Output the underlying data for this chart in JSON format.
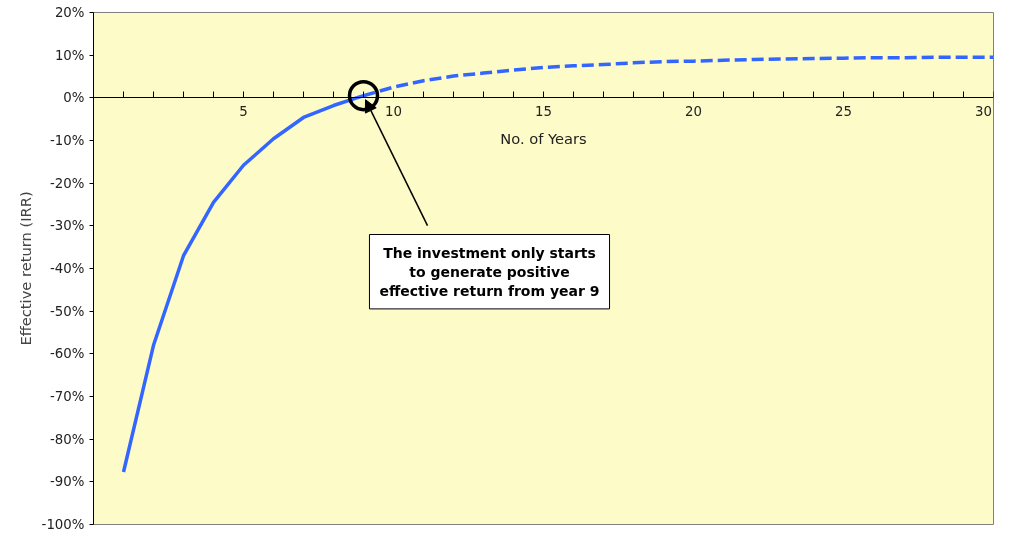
{
  "chart_data": {
    "type": "line",
    "xlabel": "No. of Years",
    "ylabel": "Effective return (IRR)",
    "xlim": [
      0,
      30
    ],
    "ylim": [
      -100,
      20
    ],
    "xticks": [
      {
        "value": 1,
        "label": null
      },
      {
        "value": 2,
        "label": null
      },
      {
        "value": 3,
        "label": null
      },
      {
        "value": 4,
        "label": null
      },
      5,
      {
        "value": 6,
        "label": null
      },
      {
        "value": 7,
        "label": null
      },
      {
        "value": 8,
        "label": null
      },
      {
        "value": 9,
        "label": null
      },
      10,
      {
        "value": 11,
        "label": null
      },
      {
        "value": 12,
        "label": null
      },
      {
        "value": 13,
        "label": null
      },
      {
        "value": 14,
        "label": null
      },
      15,
      {
        "value": 16,
        "label": null
      },
      {
        "value": 17,
        "label": null
      },
      {
        "value": 18,
        "label": null
      },
      {
        "value": 19,
        "label": null
      },
      20,
      {
        "value": 21,
        "label": null
      },
      {
        "value": 22,
        "label": null
      },
      {
        "value": 23,
        "label": null
      },
      {
        "value": 24,
        "label": null
      },
      25,
      {
        "value": 26,
        "label": null
      },
      {
        "value": 27,
        "label": null
      },
      {
        "value": 28,
        "label": null
      },
      {
        "value": 29,
        "label": null
      },
      30
    ],
    "yticks": [
      {
        "value": -100,
        "label": "-100%"
      },
      {
        "value": -90,
        "label": "-90%"
      },
      {
        "value": -80,
        "label": "-80%"
      },
      {
        "value": -70,
        "label": "-70%"
      },
      {
        "value": -60,
        "label": "-60%"
      },
      {
        "value": -50,
        "label": "-50%"
      },
      {
        "value": -40,
        "label": "-40%"
      },
      {
        "value": -30,
        "label": "-30%"
      },
      {
        "value": -20,
        "label": "-20%"
      },
      {
        "value": -10,
        "label": "-10%"
      },
      {
        "value": 0,
        "label": "0%"
      },
      {
        "value": 10,
        "label": "10%"
      },
      {
        "value": 20,
        "label": "20%"
      }
    ],
    "grid": false,
    "marker": "none",
    "series": [
      {
        "color": "#3366ff",
        "line_style": "solid",
        "x": [
          1,
          2,
          3,
          4,
          5,
          6,
          7,
          8,
          9
        ],
        "values": [
          -87.7,
          -58,
          -37,
          -24.5,
          -15.8,
          -9.6,
          -4.6,
          -1.8,
          0.5
        ]
      },
      {
        "color": "#3366ff",
        "line_style": "dashed",
        "x": [
          9,
          10,
          11,
          12,
          13,
          14,
          15,
          16,
          17,
          18,
          19,
          20,
          21,
          22,
          23,
          24,
          25,
          26,
          27,
          28,
          29,
          30
        ],
        "values": [
          0.5,
          2.5,
          4.0,
          5.1,
          5.8,
          6.5,
          7.1,
          7.5,
          7.8,
          8.2,
          8.5,
          8.6,
          8.8,
          9.0,
          9.1,
          9.2,
          9.3,
          9.4,
          9.4,
          9.5,
          9.5,
          9.5
        ]
      }
    ],
    "annotations": [
      "The investment only starts to generate positive effective return from year 9"
    ]
  }
}
